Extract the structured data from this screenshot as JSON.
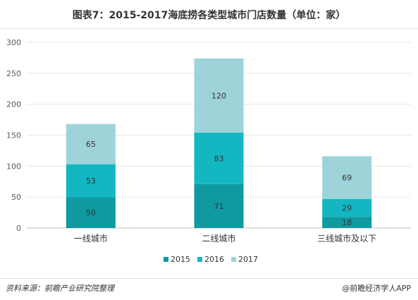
{
  "chart_data": {
    "type": "bar",
    "stacked": true,
    "title": "图表7：2015-2017海底捞各类型城市门店数量（单位：家）",
    "categories": [
      "一线城市",
      "二线城市",
      "三线城市及以下"
    ],
    "series": [
      {
        "name": "2015",
        "values": [
          50,
          71,
          18
        ],
        "color": "#0e9aa0"
      },
      {
        "name": "2016",
        "values": [
          53,
          83,
          29
        ],
        "color": "#12b7c1"
      },
      {
        "name": "2017",
        "values": [
          65,
          120,
          69
        ],
        "color": "#9ed3d9"
      }
    ],
    "ylim": [
      0,
      300
    ],
    "yticks": [
      0,
      50,
      100,
      150,
      200,
      250,
      300
    ],
    "grid": true,
    "legend_position": "bottom"
  },
  "footer": {
    "source": "资料来源：前瞻产业研究院整理",
    "brand": "@前瞻经济学人APP"
  }
}
